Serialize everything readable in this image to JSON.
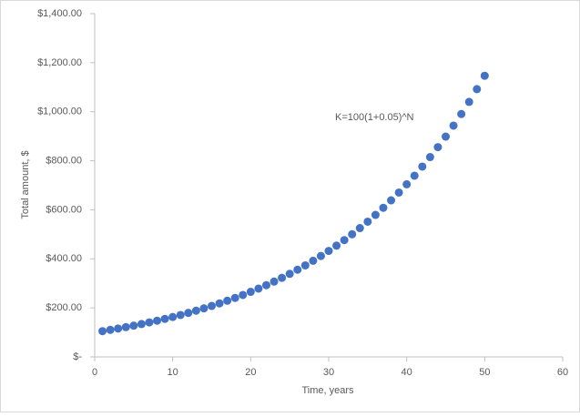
{
  "chart_data": {
    "type": "scatter",
    "x_label": "Time, years",
    "y_label": "Total amount, $",
    "annotation": "K=100(1+0.05)^N",
    "x": [
      1,
      2,
      3,
      4,
      5,
      6,
      7,
      8,
      9,
      10,
      11,
      12,
      13,
      14,
      15,
      16,
      17,
      18,
      19,
      20,
      21,
      22,
      23,
      24,
      25,
      26,
      27,
      28,
      29,
      30,
      31,
      32,
      33,
      34,
      35,
      36,
      37,
      38,
      39,
      40,
      41,
      42,
      43,
      44,
      45,
      46,
      47,
      48,
      49,
      50
    ],
    "values": [
      105.0,
      110.25,
      115.76,
      121.55,
      127.63,
      134.01,
      140.71,
      147.75,
      155.13,
      162.89,
      171.03,
      179.59,
      188.56,
      197.99,
      207.89,
      218.29,
      229.2,
      240.66,
      252.7,
      265.33,
      278.6,
      292.53,
      307.15,
      322.51,
      338.64,
      355.57,
      373.35,
      392.01,
      411.61,
      432.19,
      453.8,
      476.49,
      500.32,
      525.33,
      551.6,
      579.18,
      608.14,
      638.55,
      670.48,
      704.0,
      739.2,
      776.16,
      814.97,
      855.72,
      898.5,
      943.43,
      990.6,
      1040.13,
      1092.13,
      1146.74
    ],
    "color": "#4472c4",
    "xlim": [
      0,
      60
    ],
    "xticks": [
      0,
      10,
      20,
      30,
      40,
      50,
      60
    ],
    "ylim": [
      0,
      1400
    ],
    "yticks": [
      {
        "value": 0,
        "label": "$-"
      },
      {
        "value": 200,
        "label": "$200.00"
      },
      {
        "value": 400,
        "label": "$400.00"
      },
      {
        "value": 600,
        "label": "$600.00"
      },
      {
        "value": 800,
        "label": "$800.00"
      },
      {
        "value": 1000,
        "label": "$1,000.00"
      },
      {
        "value": 1200,
        "label": "$1,200.00"
      },
      {
        "value": 1400,
        "label": "$1,400.00"
      }
    ]
  }
}
